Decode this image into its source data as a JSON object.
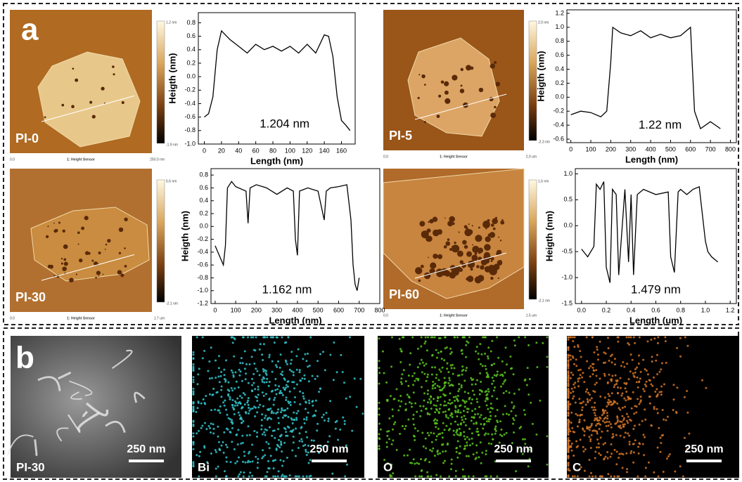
{
  "panel_labels": [
    "a",
    "b"
  ],
  "afm_images": [
    {
      "label": "PI-0",
      "colorbar_max": "1.2 nm",
      "colorbar_min": "-1.9 nm",
      "axis_start": "0.0",
      "axis_title": "1: Height Sensor",
      "axis_end": "250.0 nm"
    },
    {
      "label": "PI-5",
      "colorbar_max": "2.0 nm",
      "colorbar_min": "-2.3 nm",
      "axis_start": "0.0",
      "axis_title": "1: Height Sensor",
      "axis_end": "2.0 um"
    },
    {
      "label": "PI-30",
      "colorbar_max": "5.6 nm",
      "colorbar_min": "-2.1 nm",
      "axis_start": "0.0",
      "axis_title": "1: Height Sensor",
      "axis_end": "1.7 um"
    },
    {
      "label": "PI-60",
      "colorbar_max": "1.6 nm",
      "colorbar_min": "-2.1 nm",
      "axis_start": "0.0",
      "axis_title": "1: Height Sensor",
      "axis_end": "1.5 um"
    }
  ],
  "eds_images": [
    {
      "label": "PI-30",
      "scale": "250 nm"
    },
    {
      "label": "Bi",
      "scale": "250 nm"
    },
    {
      "label": "O",
      "scale": "250 nm"
    },
    {
      "label": "C",
      "scale": "250 nm"
    }
  ],
  "chart_data": [
    {
      "type": "line",
      "xlabel": "Length (nm)",
      "ylabel": "Heigth (nm)",
      "annotation": "1.204 nm",
      "color": "#000000",
      "x": [
        0,
        5,
        10,
        15,
        20,
        30,
        40,
        50,
        60,
        70,
        80,
        90,
        100,
        110,
        120,
        130,
        140,
        145,
        150,
        155,
        160,
        165,
        170
      ],
      "values": [
        -0.6,
        -0.55,
        -0.3,
        0.4,
        0.68,
        0.55,
        0.45,
        0.35,
        0.48,
        0.4,
        0.45,
        0.38,
        0.45,
        0.35,
        0.48,
        0.35,
        0.62,
        0.6,
        0.3,
        -0.3,
        -0.65,
        -0.72,
        -0.8
      ],
      "xlim": [
        -7,
        176
      ],
      "ylim": [
        -1.0,
        0.95
      ],
      "xticks": [
        0,
        20,
        40,
        60,
        80,
        100,
        120,
        140,
        160
      ],
      "yticks": [
        0.8,
        0.6,
        0.4,
        0.2,
        {
          "value": 0,
          "label": "0.0"
        },
        -0.2,
        -0.4,
        -0.6,
        -0.8,
        {
          "value": -1,
          "label": "-1.0"
        }
      ]
    },
    {
      "type": "line",
      "xlabel": "Length (nm)",
      "ylabel": "Heigth (nm)",
      "annotation": "1.22 nm",
      "color": "#000000",
      "x": [
        0,
        50,
        100,
        150,
        180,
        200,
        210,
        250,
        300,
        350,
        400,
        450,
        500,
        550,
        600,
        610,
        620,
        650,
        700,
        750
      ],
      "values": [
        -0.25,
        -0.2,
        -0.22,
        -0.28,
        -0.2,
        0.5,
        1.0,
        0.92,
        0.88,
        0.95,
        0.85,
        0.9,
        0.85,
        0.88,
        1.0,
        0.4,
        -0.2,
        -0.45,
        -0.35,
        -0.45
      ],
      "xlim": [
        -20,
        830
      ],
      "ylim": [
        -0.65,
        1.25
      ],
      "xticks": [
        0,
        100,
        200,
        300,
        400,
        500,
        600,
        700,
        800
      ],
      "yticks": [
        1.2,
        {
          "value": 1,
          "label": "1.0"
        },
        0.8,
        0.6,
        0.4,
        0.2,
        {
          "value": 0,
          "label": "0.0"
        },
        -0.2,
        -0.4,
        -0.6
      ]
    },
    {
      "type": "line",
      "xlabel": "Length (nm)",
      "ylabel": "Heigth (nm)",
      "annotation": "1.162 nm",
      "color": "#000000",
      "x": [
        0,
        20,
        40,
        50,
        60,
        80,
        100,
        150,
        160,
        170,
        200,
        250,
        300,
        350,
        380,
        390,
        400,
        410,
        450,
        500,
        530,
        540,
        560,
        600,
        640,
        660,
        670,
        680,
        690,
        700
      ],
      "values": [
        -0.3,
        -0.45,
        -0.6,
        -0.3,
        0.6,
        0.7,
        0.62,
        0.55,
        0.05,
        0.6,
        0.65,
        0.6,
        0.5,
        0.6,
        0.55,
        -0.2,
        -0.45,
        0.55,
        0.6,
        0.55,
        0.1,
        0.55,
        0.6,
        0.62,
        0.65,
        0.1,
        -0.6,
        -0.9,
        -1.0,
        -0.8
      ],
      "xlim": [
        -20,
        800
      ],
      "ylim": [
        -1.2,
        0.9
      ],
      "xticks": [
        0,
        100,
        200,
        300,
        400,
        500,
        600,
        700,
        800
      ],
      "yticks": [
        0.8,
        0.6,
        0.4,
        0.2,
        {
          "value": 0,
          "label": "0.0"
        },
        -0.2,
        -0.4,
        -0.6,
        -0.8,
        {
          "value": -1,
          "label": "-1.0"
        },
        -1.2
      ]
    },
    {
      "type": "line",
      "xlabel": "Length (um)",
      "ylabel": "Heigth (nm)",
      "annotation": "1.479 nm",
      "color": "#000000",
      "x": [
        0,
        0.05,
        0.1,
        0.12,
        0.15,
        0.18,
        0.2,
        0.23,
        0.25,
        0.28,
        0.3,
        0.35,
        0.38,
        0.4,
        0.42,
        0.45,
        0.5,
        0.6,
        0.7,
        0.72,
        0.75,
        0.78,
        0.8,
        0.85,
        0.9,
        0.95,
        1.0,
        1.02,
        1.05,
        1.1
      ],
      "values": [
        -0.45,
        -0.6,
        -0.4,
        0.8,
        0.7,
        0.85,
        -0.8,
        -1.1,
        0.7,
        0.6,
        -0.95,
        0.7,
        -0.7,
        0.6,
        -0.95,
        0.6,
        0.7,
        0.6,
        0.65,
        -0.6,
        -0.9,
        0.65,
        0.7,
        0.6,
        0.7,
        0.75,
        -0.3,
        -0.5,
        -0.6,
        -0.7
      ],
      "xlim": [
        -0.05,
        1.25
      ],
      "ylim": [
        -1.5,
        1.1
      ],
      "xticks": [
        {
          "value": 0,
          "label": "0.0"
        },
        0.2,
        0.4,
        0.6,
        0.8,
        {
          "value": 1,
          "label": "1.0"
        },
        1.2
      ],
      "yticks": [
        {
          "value": 1,
          "label": "1.0"
        },
        0.5,
        {
          "value": 0,
          "label": "0.0"
        },
        -0.5,
        {
          "value": -1,
          "label": "-1.0"
        },
        -1.5
      ]
    }
  ]
}
